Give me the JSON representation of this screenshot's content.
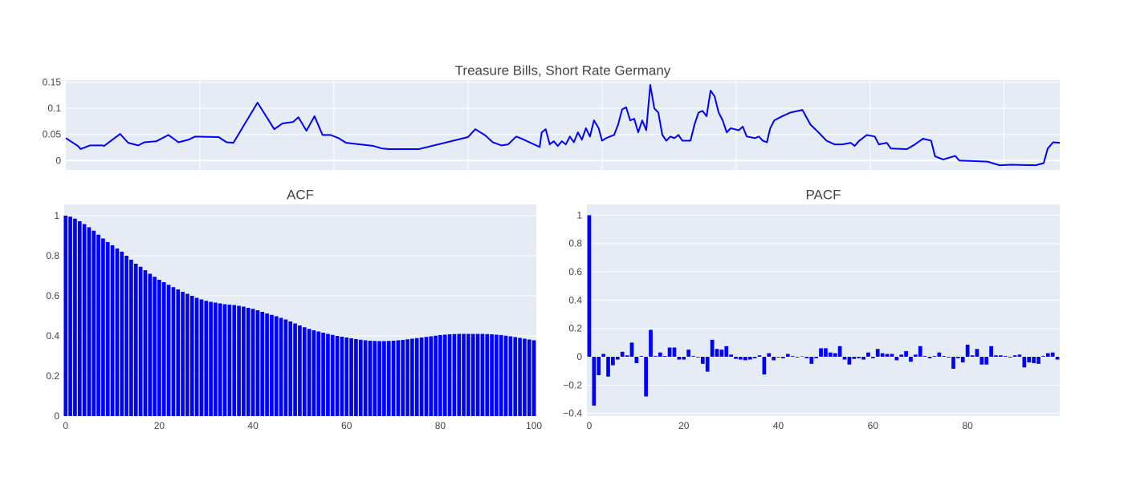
{
  "chart_data": [
    {
      "type": "line",
      "title": "Treasure Bills, Short Rate Germany",
      "color": "#0000ff",
      "grid": true,
      "show_xtick_labels": false,
      "x": [
        0,
        18,
        22,
        36,
        54,
        57,
        81,
        93,
        108,
        117,
        135,
        153,
        168,
        183,
        193,
        228,
        240,
        250,
        286,
        311,
        323,
        339,
        347,
        359,
        371,
        383,
        395,
        407,
        418,
        459,
        472,
        483,
        527,
        600,
        611,
        626,
        637,
        650,
        660,
        672,
        680,
        707,
        710,
        716,
        722,
        728,
        734,
        740,
        746,
        752,
        758,
        764,
        770,
        776,
        782,
        788,
        795,
        800,
        806,
        812,
        818,
        824,
        830,
        836,
        842,
        848,
        854,
        860,
        866,
        872,
        878,
        884,
        890,
        896,
        902,
        908,
        914,
        920,
        932,
        938,
        944,
        950,
        956,
        962,
        968,
        974,
        980,
        986,
        992,
        1004,
        1010,
        1016,
        1028,
        1034,
        1040,
        1046,
        1051,
        1057,
        1069,
        1081,
        1099,
        1111,
        1123,
        1135,
        1147,
        1159,
        1171,
        1177,
        1183,
        1195,
        1207,
        1213,
        1225,
        1231,
        1255,
        1267,
        1279,
        1291,
        1297,
        1309,
        1327,
        1333,
        1375,
        1393,
        1411,
        1447,
        1459,
        1465,
        1473,
        1483
      ],
      "values": [
        0.043,
        0.028,
        0.022,
        0.029,
        0.029,
        0.028,
        0.051,
        0.034,
        0.029,
        0.035,
        0.037,
        0.049,
        0.035,
        0.04,
        0.046,
        0.045,
        0.035,
        0.034,
        0.111,
        0.06,
        0.071,
        0.074,
        0.083,
        0.057,
        0.085,
        0.049,
        0.049,
        0.043,
        0.034,
        0.028,
        0.023,
        0.022,
        0.022,
        0.045,
        0.06,
        0.048,
        0.035,
        0.029,
        0.031,
        0.046,
        0.042,
        0.026,
        0.054,
        0.06,
        0.031,
        0.037,
        0.028,
        0.037,
        0.031,
        0.046,
        0.035,
        0.054,
        0.04,
        0.062,
        0.046,
        0.077,
        0.062,
        0.038,
        0.043,
        0.046,
        0.049,
        0.069,
        0.098,
        0.102,
        0.077,
        0.08,
        0.054,
        0.077,
        0.058,
        0.145,
        0.1,
        0.092,
        0.049,
        0.038,
        0.046,
        0.043,
        0.049,
        0.038,
        0.038,
        0.069,
        0.092,
        0.095,
        0.085,
        0.134,
        0.123,
        0.092,
        0.077,
        0.054,
        0.062,
        0.058,
        0.065,
        0.046,
        0.043,
        0.046,
        0.038,
        0.035,
        0.062,
        0.077,
        0.085,
        0.092,
        0.097,
        0.069,
        0.054,
        0.038,
        0.031,
        0.031,
        0.034,
        0.028,
        0.037,
        0.049,
        0.046,
        0.031,
        0.034,
        0.023,
        0.022,
        0.031,
        0.042,
        0.038,
        0.008,
        0.002,
        0.009,
        0,
        -0.002,
        -0.009,
        -0.008,
        -0.009,
        -0.005,
        0.023,
        0.035,
        0.034
      ],
      "xlim": [
        0,
        1483
      ],
      "xticks": [
        200,
        400,
        600,
        800,
        1000,
        1200,
        1400
      ],
      "ylim": [
        -0.018,
        0.154
      ],
      "yticks": [
        0,
        0.05,
        0.1,
        0.15
      ]
    },
    {
      "type": "bar",
      "title": "ACF",
      "color": "#0000ff",
      "grid": true,
      "show_xtick_labels": true,
      "x": [
        0,
        1,
        2,
        3,
        4,
        5,
        6,
        7,
        8,
        9,
        10,
        11,
        12,
        13,
        14,
        15,
        16,
        17,
        18,
        19,
        20,
        21,
        22,
        23,
        24,
        25,
        26,
        27,
        28,
        29,
        30,
        31,
        32,
        33,
        34,
        35,
        36,
        37,
        38,
        39,
        40,
        41,
        42,
        43,
        44,
        45,
        46,
        47,
        48,
        49,
        50,
        51,
        52,
        53,
        54,
        55,
        56,
        57,
        58,
        59,
        60,
        61,
        62,
        63,
        64,
        65,
        66,
        67,
        68,
        69,
        70,
        71,
        72,
        73,
        74,
        75,
        76,
        77,
        78,
        79,
        80,
        81,
        82,
        83,
        84,
        85,
        86,
        87,
        88,
        89,
        90,
        91,
        92,
        93,
        94,
        95,
        96,
        97,
        98,
        99,
        100
      ],
      "values": [
        1,
        0.995,
        0.985,
        0.972,
        0.958,
        0.942,
        0.925,
        0.905,
        0.886,
        0.868,
        0.852,
        0.836,
        0.82,
        0.8,
        0.78,
        0.76,
        0.745,
        0.728,
        0.71,
        0.695,
        0.68,
        0.668,
        0.655,
        0.643,
        0.632,
        0.62,
        0.61,
        0.6,
        0.59,
        0.582,
        0.575,
        0.57,
        0.566,
        0.562,
        0.558,
        0.556,
        0.554,
        0.55,
        0.546,
        0.54,
        0.535,
        0.528,
        0.52,
        0.512,
        0.505,
        0.498,
        0.49,
        0.482,
        0.472,
        0.462,
        0.452,
        0.443,
        0.435,
        0.428,
        0.422,
        0.416,
        0.41,
        0.405,
        0.4,
        0.396,
        0.392,
        0.388,
        0.384,
        0.381,
        0.378,
        0.376,
        0.375,
        0.374,
        0.374,
        0.375,
        0.376,
        0.378,
        0.38,
        0.383,
        0.386,
        0.389,
        0.392,
        0.395,
        0.398,
        0.401,
        0.404,
        0.406,
        0.408,
        0.409,
        0.41,
        0.41,
        0.41,
        0.41,
        0.41,
        0.41,
        0.409,
        0.408,
        0.406,
        0.404,
        0.401,
        0.398,
        0.394,
        0.39,
        0.386,
        0.382,
        0.378
      ],
      "xlim": [
        -0.3,
        100.5
      ],
      "xticks": [
        0,
        20,
        40,
        60,
        80,
        100
      ],
      "ylim": [
        0,
        1.056
      ],
      "yticks": [
        0,
        0.2,
        0.4,
        0.6,
        0.8,
        1
      ]
    },
    {
      "type": "bar",
      "title": "PACF",
      "color": "#0000ff",
      "grid": true,
      "show_xtick_labels": true,
      "x": [
        0,
        1,
        2,
        3,
        4,
        5,
        6,
        7,
        8,
        9,
        10,
        11,
        12,
        13,
        14,
        15,
        16,
        17,
        18,
        19,
        20,
        21,
        22,
        23,
        24,
        25,
        26,
        27,
        28,
        29,
        30,
        31,
        32,
        33,
        34,
        35,
        36,
        37,
        38,
        39,
        40,
        41,
        42,
        43,
        44,
        45,
        46,
        47,
        48,
        49,
        50,
        51,
        52,
        53,
        54,
        55,
        56,
        57,
        58,
        59,
        60,
        61,
        62,
        63,
        64,
        65,
        66,
        67,
        68,
        69,
        70,
        71,
        72,
        73,
        74,
        75,
        76,
        77,
        78,
        79,
        80,
        81,
        82,
        83,
        84,
        85,
        86,
        87,
        88,
        89,
        90,
        91,
        92,
        93,
        94,
        95,
        96,
        97,
        98,
        99
      ],
      "values": [
        1,
        -0.345,
        -0.13,
        0.02,
        -0.14,
        -0.06,
        -0.02,
        0.035,
        0.01,
        0.1,
        -0.045,
        0.005,
        -0.28,
        0.19,
        0.005,
        0.03,
        0.005,
        0.065,
        0.065,
        -0.02,
        -0.02,
        0.05,
        0.005,
        -0.005,
        -0.05,
        -0.105,
        0.12,
        0.055,
        0.05,
        0.075,
        0.015,
        -0.015,
        -0.02,
        -0.025,
        -0.02,
        -0.01,
        0.01,
        -0.125,
        0.025,
        -0.025,
        -0.005,
        -0.01,
        0.02,
        0.005,
        -0.005,
        0.003,
        -0.01,
        -0.05,
        -0.01,
        0.06,
        0.06,
        0.03,
        0.025,
        0.075,
        -0.02,
        -0.055,
        -0.015,
        -0.01,
        -0.02,
        0.03,
        -0.01,
        0.055,
        0.025,
        0.02,
        0.02,
        -0.025,
        0.015,
        0.04,
        -0.035,
        0.015,
        0.075,
        0.005,
        -0.01,
        0.005,
        0.03,
        0.005,
        -0.005,
        -0.085,
        -0.01,
        -0.04,
        0.085,
        0.01,
        0.055,
        -0.055,
        -0.055,
        0.075,
        0.01,
        0.01,
        0.005,
        -0.005,
        0.01,
        0.015,
        -0.075,
        -0.04,
        -0.045,
        -0.05,
        0.005,
        0.025,
        0.03,
        -0.02
      ],
      "xlim": [
        -0.5,
        99.5
      ],
      "xticks": [
        0,
        20,
        40,
        60,
        80
      ],
      "ylim": [
        -0.419,
        1.076
      ],
      "yticks": [
        {
          "value": -0.4,
          "label": "−0.4"
        },
        {
          "value": -0.2,
          "label": "−0.2"
        },
        0,
        0.2,
        0.4,
        0.6,
        0.8,
        1
      ]
    }
  ]
}
